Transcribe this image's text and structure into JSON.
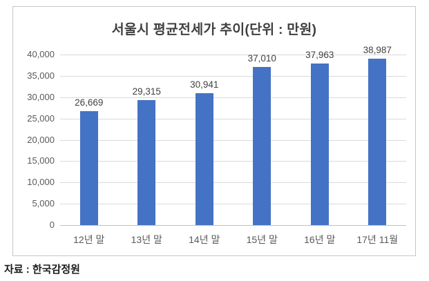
{
  "chart_data": {
    "type": "bar",
    "title": "서울시 평균전세가 추이(단위 : 만원)",
    "categories": [
      "12년 말",
      "13년 말",
      "14년 말",
      "15년 말",
      "16년 말",
      "17년 11월"
    ],
    "values": [
      26669,
      29315,
      30941,
      37010,
      37963,
      38987
    ],
    "value_labels": [
      "26,669",
      "29,315",
      "30,941",
      "37,010",
      "37,963",
      "38,987"
    ],
    "ylabel": "",
    "xlabel": "",
    "ylim": [
      0,
      40000
    ],
    "yticks": {
      "values": [
        0,
        5000,
        10000,
        15000,
        20000,
        25000,
        30000,
        35000,
        40000
      ],
      "labels": [
        "0",
        "5,000",
        "10,000",
        "15,000",
        "20,000",
        "25,000",
        "30,000",
        "35,000",
        "40,000"
      ]
    },
    "grid": "horizontal",
    "legend": "none",
    "colors": {
      "bar": "#4472c4",
      "gridline": "#d9d9d9",
      "axis_line": "#bfbfbf",
      "tick_label": "#595959",
      "data_label": "#404040",
      "title": "#404040",
      "frame_border": "#c6c6c6"
    }
  },
  "source_note": "자료 : 한국감정원"
}
